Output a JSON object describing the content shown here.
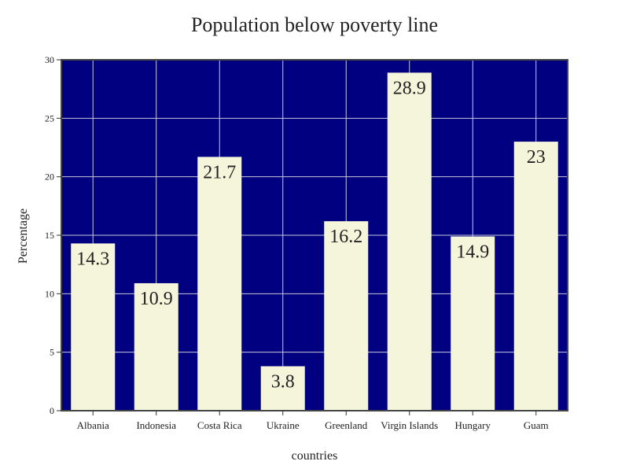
{
  "chart_data": {
    "type": "bar",
    "title": "Population below poverty line",
    "xlabel": "countries",
    "ylabel": "Percentage",
    "categories": [
      "Albania",
      "Indonesia",
      "Costa Rica",
      "Ukraine",
      "Greenland",
      "Virgin Islands",
      "Hungary",
      "Guam"
    ],
    "values": [
      14.3,
      10.9,
      21.7,
      3.8,
      16.2,
      28.9,
      14.9,
      23
    ],
    "value_labels": [
      "14.3",
      "10.9",
      "21.7",
      "3.8",
      "16.2",
      "28.9",
      "14.9",
      "23"
    ],
    "ylim": [
      0,
      30
    ],
    "yticks": [
      0,
      5,
      10,
      15,
      20,
      25,
      30
    ],
    "grid": true,
    "legend": "none",
    "colors": {
      "plot_background": "#000080",
      "bar": "#f5f5dc",
      "grid": "#c8c8d8",
      "frame": "#444444",
      "text": "#222222"
    }
  }
}
